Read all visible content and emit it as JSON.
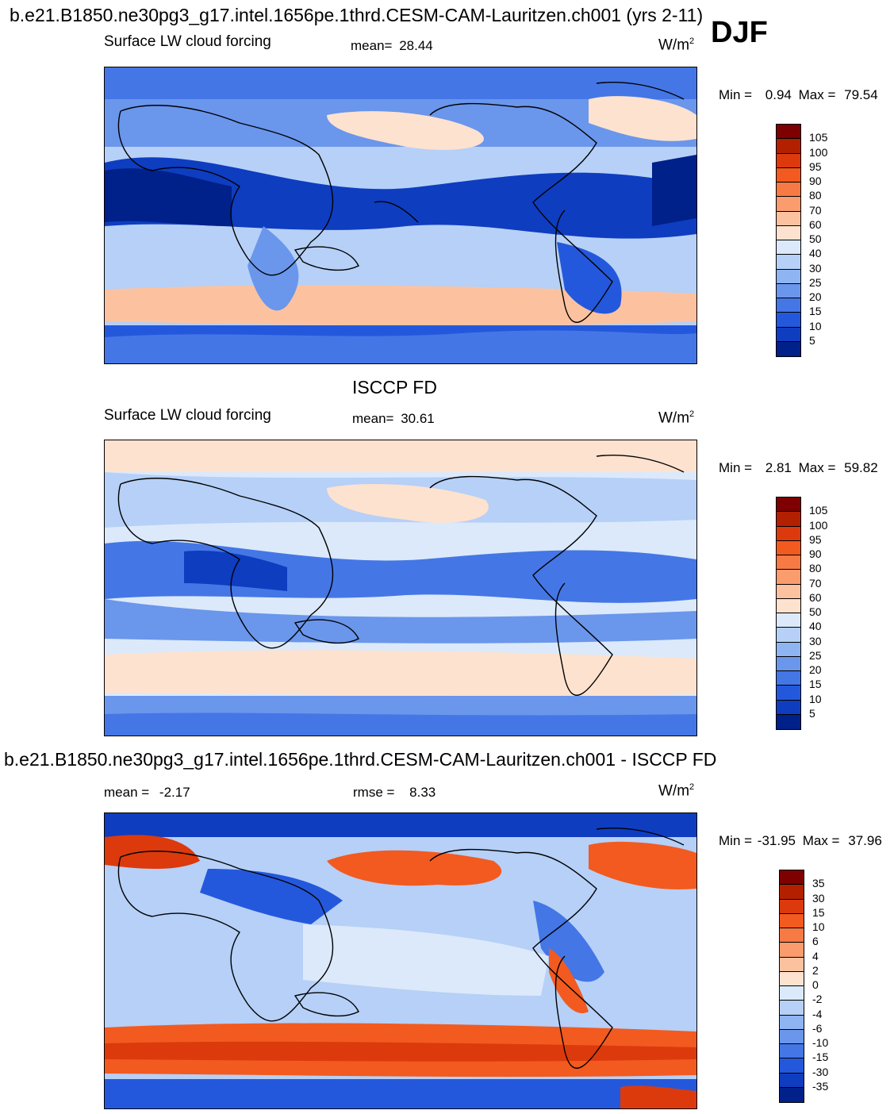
{
  "header": {
    "title": "b.e21.B1850.ne30pg3_g17.intel.1656pe.1thrd.CESM-CAM-Lauritzen.ch001 (yrs 2-11)",
    "season": "DJF"
  },
  "panels": [
    {
      "id": "model",
      "field": "Surface LW cloud forcing",
      "mean_label": "mean=",
      "mean": "28.44",
      "units": "W/m",
      "units_exp": "2",
      "min_label": "Min =",
      "min": "0.94",
      "max_label": "Max =",
      "max": "79.54",
      "colorbar_labels": [
        "105",
        "100",
        "95",
        "90",
        "80",
        "70",
        "60",
        "50",
        "40",
        "30",
        "25",
        "20",
        "15",
        "10",
        "5"
      ]
    },
    {
      "id": "obs",
      "heading": "ISCCP FD",
      "field": "Surface LW cloud forcing",
      "mean_label": "mean=",
      "mean": "30.61",
      "units": "W/m",
      "units_exp": "2",
      "min_label": "Min =",
      "min": "2.81",
      "max_label": "Max =",
      "max": "59.82",
      "colorbar_labels": [
        "105",
        "100",
        "95",
        "90",
        "80",
        "70",
        "60",
        "50",
        "40",
        "30",
        "25",
        "20",
        "15",
        "10",
        "5"
      ]
    },
    {
      "id": "diff",
      "heading": "b.e21.B1850.ne30pg3_g17.intel.1656pe.1thrd.CESM-CAM-Lauritzen.ch001 - ISCCP FD",
      "mean_label": "mean =",
      "mean": "-2.17",
      "rmse_label": "rmse =",
      "rmse": "8.33",
      "units": "W/m",
      "units_exp": "2",
      "min_label": "Min =",
      "min": "-31.95",
      "max_label": "Max =",
      "max": "37.96",
      "colorbar_labels": [
        "35",
        "30",
        "15",
        "10",
        "6",
        "4",
        "2",
        "0",
        "-2",
        "-4",
        "-6",
        "-10",
        "-15",
        "-30",
        "-35"
      ]
    }
  ],
  "colors": {
    "palette": [
      "#7f0000",
      "#b22000",
      "#dc3a0c",
      "#f25a20",
      "#f77a45",
      "#fa9c6e",
      "#fcc2a0",
      "#fde2cf",
      "#dbe9fa",
      "#b6d0f7",
      "#8fb4f2",
      "#6a96ec",
      "#4476e6",
      "#2458dc",
      "#0e3dc0",
      "#00208a"
    ],
    "land_outline": "#000000"
  }
}
